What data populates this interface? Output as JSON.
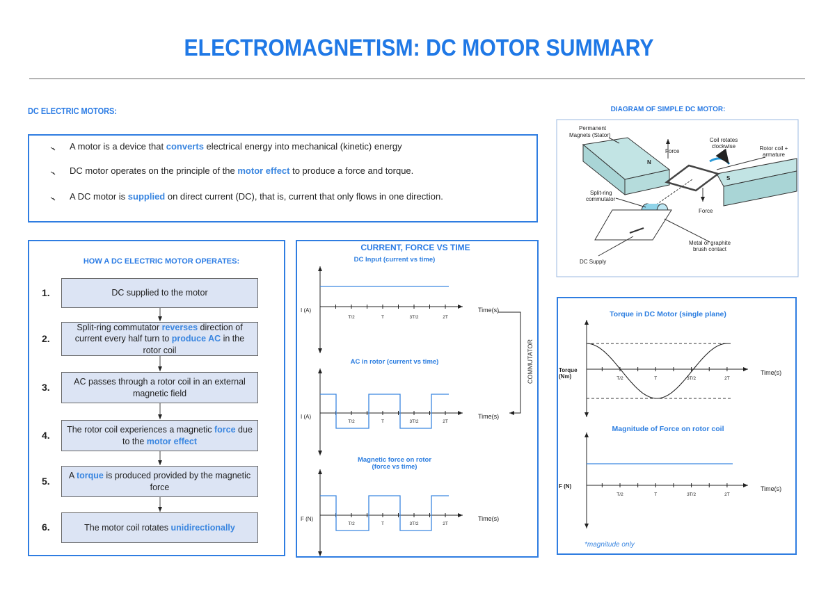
{
  "title": "ELECTROMAGNETISM: DC MOTOR SUMMARY",
  "intro": {
    "heading": "DC ELECTRIC MOTORS:",
    "bullets": [
      [
        "A motor is a device that ",
        "converts",
        " electrical energy into mechanical (kinetic) energy"
      ],
      [
        "DC motor operates on the principle of the ",
        "motor effect",
        " to produce a force and torque."
      ],
      [
        "A DC motor is ",
        "supplied",
        " on direct current (DC), that is, current that only flows in one direction."
      ]
    ]
  },
  "diagram": {
    "heading": "DIAGRAM OF SIMPLE DC MOTOR:",
    "magnets": [
      "Permanent",
      "Magnets (Stator)"
    ],
    "force_top": "Force",
    "coil_rotates": [
      "Coil rotates",
      "clockwise"
    ],
    "rotor_coil": [
      "Rotor coil +",
      "armature"
    ],
    "north": "N",
    "south": "S",
    "commutator": [
      "Split-ring",
      "commutator"
    ],
    "force_bottom": "Force",
    "brush": [
      "Metal or graphite",
      "brush contact"
    ],
    "supply": "DC Supply"
  },
  "steps": {
    "heading": "HOW A DC ELECTRIC MOTOR OPERATES:",
    "items": [
      {
        "number": "1.",
        "parts": [
          "DC supplied to the motor"
        ]
      },
      {
        "number": "2.",
        "parts": [
          "Split-ring commutator ",
          "reverses",
          " direction of current every half turn to ",
          "produce AC",
          " in the rotor coil"
        ]
      },
      {
        "number": "3.",
        "parts": [
          "AC passes through a rotor coil in an external magnetic field"
        ]
      },
      {
        "number": "4.",
        "parts": [
          "The rotor coil experiences a magnetic ",
          "force",
          " due to the ",
          "motor effect"
        ]
      },
      {
        "number": "5.",
        "parts": [
          "A ",
          "torque",
          " is produced provided by the magnetic force"
        ]
      },
      {
        "number": "6.",
        "parts": [
          "The motor coil rotates ",
          "unidirectionally"
        ]
      }
    ]
  },
  "graphs": {
    "heading": "CURRENT, FORCE VS TIME",
    "x_label": "Time(s)",
    "time_ticks": [
      "T/2",
      "T",
      "3T/2",
      "2T"
    ],
    "side_label": "COMMUTATOR",
    "panels": [
      {
        "title_lines": [
          "DC Input (current vs time)"
        ],
        "y_label": "I (A)"
      },
      {
        "title_lines": [
          "AC in rotor (current vs time)"
        ],
        "y_label": "I (A)"
      },
      {
        "title_lines": [
          "Magnetic force on rotor",
          "(force vs time)"
        ],
        "y_label": "F (N)"
      }
    ]
  },
  "torque": {
    "x_label": "Time(s)",
    "time_ticks": [
      "T/2",
      "T",
      "3T/2",
      "2T"
    ],
    "note": "*magnitude only",
    "panels": [
      {
        "title": "Torque in DC Motor (single plane)",
        "y_label_lines": [
          "Torque",
          "(Nm)"
        ]
      },
      {
        "title": "Magnitude of Force on rotor coil",
        "y_label_lines": [
          "F (N)"
        ]
      }
    ]
  }
}
